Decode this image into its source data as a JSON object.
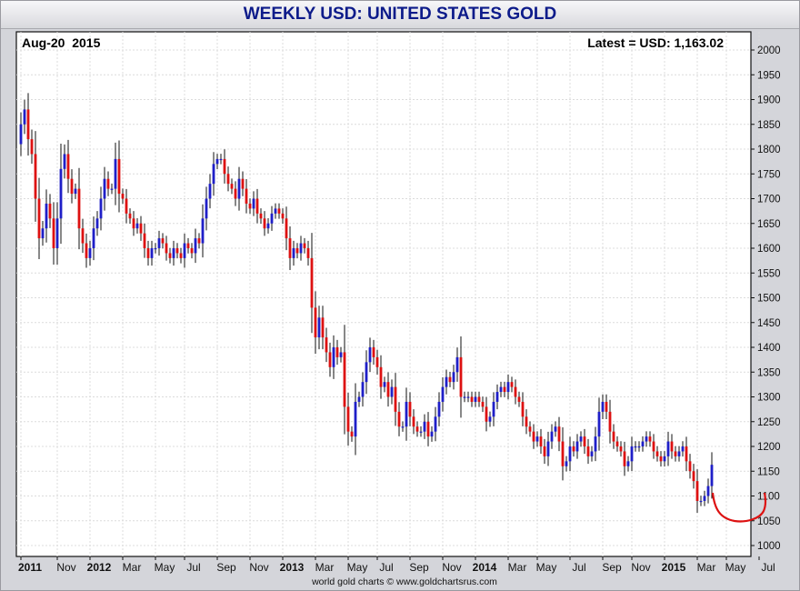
{
  "colors": {
    "up": "#1f1fc8",
    "down": "#dd1111",
    "title": "#0d1b8a",
    "annotation": "#dd1111"
  },
  "chart_data": {
    "type": "candlestick",
    "title": "WEEKLY USD: UNITED STATES GOLD",
    "date_label": "Aug-20  2015",
    "latest_label": "Latest = USD: 1,163.02",
    "footer": "world gold charts © www.goldchartsrus.com",
    "frequency": "weekly",
    "start_week": "2011-08-18",
    "ylim": [
      1000,
      2000
    ],
    "yticks": [
      1000,
      1050,
      1100,
      1150,
      1200,
      1250,
      1300,
      1350,
      1400,
      1450,
      1500,
      1550,
      1600,
      1650,
      1700,
      1750,
      1800,
      1850,
      1900,
      1950,
      2000
    ],
    "ytick_labels": [
      "1000",
      "1050",
      "1100",
      "1150",
      "1200",
      "1250",
      "1300",
      "1350",
      "1400",
      "1450",
      "1500",
      "1550",
      "1600",
      "1650",
      "1700",
      "1750",
      "1800",
      "1850",
      "1900",
      "1950",
      "2000"
    ],
    "grid": true,
    "y_axis_side": "right",
    "xticks": [
      {
        "label": "2011",
        "week": 0,
        "bold": true
      },
      {
        "label": "Nov",
        "week": 10
      },
      {
        "label": "2012",
        "week": 19,
        "bold": true
      },
      {
        "label": "Mar",
        "week": 28
      },
      {
        "label": "May",
        "week": 37
      },
      {
        "label": "Jul",
        "week": 45
      },
      {
        "label": "Sep",
        "week": 54
      },
      {
        "label": "Nov",
        "week": 63
      },
      {
        "label": "2013",
        "week": 72,
        "bold": true
      },
      {
        "label": "Mar",
        "week": 81
      },
      {
        "label": "May",
        "week": 90
      },
      {
        "label": "Jul",
        "week": 98
      },
      {
        "label": "Sep",
        "week": 107
      },
      {
        "label": "Nov",
        "week": 116
      },
      {
        "label": "2014",
        "week": 125,
        "bold": true
      },
      {
        "label": "Mar",
        "week": 134
      },
      {
        "label": "May",
        "week": 142
      },
      {
        "label": "Jul",
        "week": 151
      },
      {
        "label": "Sep",
        "week": 160
      },
      {
        "label": "Nov",
        "week": 168
      },
      {
        "label": "2015",
        "week": 177,
        "bold": true
      },
      {
        "label": "Mar",
        "week": 186
      },
      {
        "label": "May",
        "week": 194
      },
      {
        "label": "Jul",
        "week": 203
      }
    ],
    "close": [
      1850,
      1880,
      1820,
      1790,
      1700,
      1620,
      1640,
      1690,
      1660,
      1600,
      1660,
      1760,
      1790,
      1740,
      1710,
      1720,
      1640,
      1610,
      1580,
      1600,
      1640,
      1660,
      1700,
      1740,
      1720,
      1720,
      1780,
      1710,
      1700,
      1670,
      1660,
      1640,
      1650,
      1630,
      1600,
      1580,
      1600,
      1600,
      1620,
      1610,
      1590,
      1580,
      1600,
      1590,
      1580,
      1610,
      1600,
      1590,
      1620,
      1610,
      1660,
      1700,
      1730,
      1770,
      1780,
      1780,
      1750,
      1730,
      1720,
      1700,
      1740,
      1720,
      1690,
      1680,
      1700,
      1670,
      1660,
      1640,
      1650,
      1670,
      1680,
      1670,
      1660,
      1620,
      1580,
      1600,
      1590,
      1610,
      1600,
      1580,
      1480,
      1420,
      1460,
      1420,
      1390,
      1360,
      1400,
      1380,
      1390,
      1280,
      1230,
      1220,
      1290,
      1300,
      1330,
      1370,
      1400,
      1380,
      1360,
      1320,
      1330,
      1300,
      1320,
      1270,
      1240,
      1240,
      1290,
      1260,
      1240,
      1230,
      1230,
      1250,
      1220,
      1230,
      1260,
      1290,
      1320,
      1340,
      1330,
      1350,
      1380,
      1300,
      1300,
      1300,
      1290,
      1300,
      1290,
      1280,
      1250,
      1260,
      1290,
      1310,
      1320,
      1310,
      1330,
      1320,
      1300,
      1290,
      1260,
      1240,
      1230,
      1210,
      1220,
      1200,
      1180,
      1210,
      1230,
      1240,
      1210,
      1160,
      1170,
      1200,
      1190,
      1210,
      1220,
      1200,
      1180,
      1190,
      1220,
      1270,
      1290,
      1270,
      1230,
      1210,
      1200,
      1190,
      1160,
      1170,
      1200,
      1200,
      1200,
      1210,
      1220,
      1210,
      1190,
      1180,
      1170,
      1180,
      1210,
      1190,
      1180,
      1190,
      1200,
      1170,
      1150,
      1130,
      1090,
      1090,
      1100,
      1120,
      1163
    ]
  },
  "annotation": {
    "type": "hand-drawn-curve",
    "color": "#dd1111"
  }
}
